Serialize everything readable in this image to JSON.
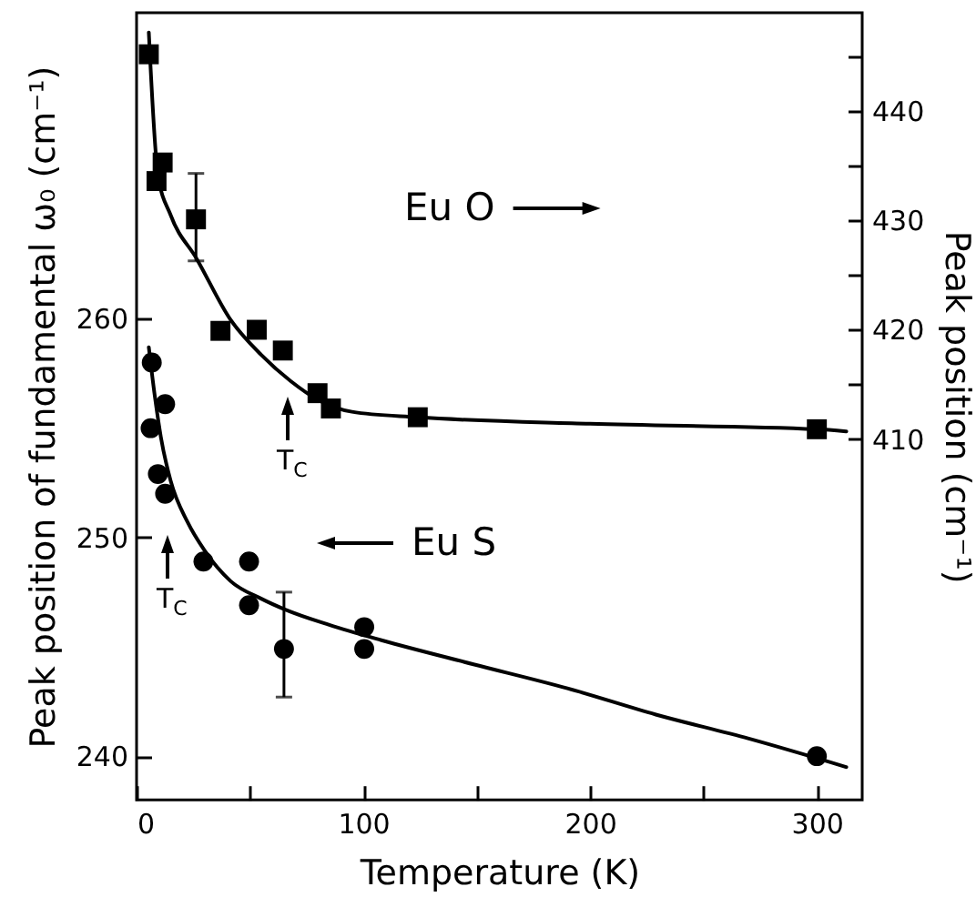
{
  "chart_data": {
    "type": "scatter",
    "xlabel": "Temperature  (K)",
    "ylabel": "Peak position of fundamental ω₀ (cm⁻¹)",
    "y2label": "Peak position (cm⁻¹)",
    "xlim": [
      0,
      320
    ],
    "xticks": [
      0,
      {
        "value": 50,
        "label": null
      },
      100,
      {
        "value": 150,
        "label": null
      },
      200,
      {
        "value": 250,
        "label": null
      },
      300
    ],
    "ylim": [
      238,
      274
    ],
    "yticks": [
      240,
      250,
      260
    ],
    "y2lim": [
      377,
      449
    ],
    "y2ticks": [
      410,
      {
        "value": 415,
        "label": null
      },
      420,
      {
        "value": 425,
        "label": null
      },
      430,
      {
        "value": 435,
        "label": null
      },
      440,
      {
        "value": 445,
        "label": null
      }
    ],
    "grid": false,
    "series": [
      {
        "axis": "y2",
        "marker": "square",
        "color": "#000000",
        "x": [
          5.4,
          11.5,
          8.8,
          26.2,
          37,
          53,
          64.5,
          79.8,
          85.7,
          124,
          300
        ],
        "values": [
          445.2,
          435.3,
          433.6,
          430.1,
          419.9,
          420.0,
          418.1,
          414.2,
          412.8,
          412.0,
          410.9
        ],
        "errors": [
          null,
          null,
          null,
          [
            426.3,
            434.3
          ],
          null,
          null,
          null,
          null,
          null,
          null,
          null
        ]
      },
      {
        "type": "line",
        "axis": "y2",
        "line_style": "solid",
        "color": "#000000",
        "x": [
          5.4,
          9.4,
          15,
          26.5,
          41.5,
          55,
          68,
          80,
          95,
          124,
          200,
          300,
          313
        ],
        "values": [
          447.2,
          434.2,
          430.5,
          426.5,
          420.9,
          417.7,
          415.3,
          413.6,
          412.5,
          412.0,
          411.4,
          410.9,
          410.7
        ]
      },
      {
        "axis": "y",
        "marker": "circle",
        "color": "#000000",
        "x": [
          6.7,
          12.6,
          6.2,
          9.4,
          12.6,
          29.5,
          49.6,
          49.6,
          65,
          100.4,
          100.4,
          300
        ],
        "values": [
          258.0,
          256.1,
          255.0,
          252.9,
          252.0,
          248.9,
          248.9,
          246.9,
          244.9,
          245.9,
          244.9,
          240.0
        ],
        "errors": [
          null,
          null,
          null,
          null,
          null,
          null,
          null,
          null,
          [
            242.7,
            247.5
          ],
          null,
          null,
          null
        ]
      },
      {
        "type": "line",
        "axis": "y",
        "line_style": "solid",
        "color": "#000000",
        "x": [
          5.4,
          8,
          10.7,
          15,
          22.5,
          30,
          41.5,
          55,
          65.6,
          85,
          108,
          148.6,
          190,
          229,
          270,
          313
        ],
        "values": [
          258.7,
          256.5,
          254.6,
          252.6,
          250.7,
          249.4,
          248.0,
          247.2,
          246.7,
          246.0,
          245.3,
          244.2,
          243.1,
          241.9,
          240.8,
          239.5
        ]
      }
    ],
    "annotations": [
      "Eu O",
      "Eu S",
      "T$_{C}$",
      "T$_{C}$"
    ]
  }
}
